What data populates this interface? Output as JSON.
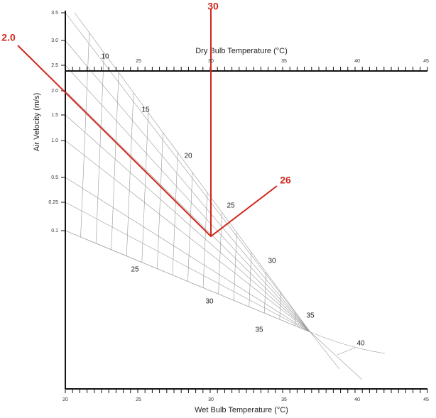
{
  "readings": {
    "dry_bulb": "30",
    "air_velocity": "2.0",
    "effective_temperature": "26"
  },
  "axes": {
    "dry_bulb": {
      "label": "Dry Bulb Temperature (°C)",
      "ticks": [
        "25",
        "30",
        "35",
        "40",
        "45"
      ]
    },
    "wet_bulb": {
      "label": "Wet Bulb Temperature (°C)",
      "ticks": [
        "20",
        "25",
        "30",
        "35",
        "40",
        "45"
      ]
    },
    "air_velocity": {
      "label": "Air Velocity (m/s)",
      "ticks": [
        "3.5",
        "3.0",
        "2.5",
        "2.0",
        "1.5",
        "1.0",
        "0.5",
        "0.25",
        "0.1"
      ]
    }
  },
  "effective_temperature_labels": [
    "10",
    "15",
    "20",
    "25",
    "30",
    "35",
    "40"
  ],
  "lower_scale_labels": [
    "25",
    "30",
    "35"
  ]
}
